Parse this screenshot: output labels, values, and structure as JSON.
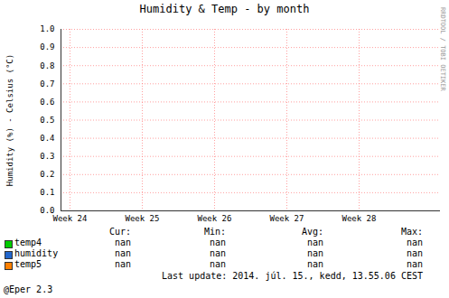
{
  "chart_data": {
    "type": "line",
    "title": "Humidity & Temp - by month",
    "y_label": "Humidity (%) - Celsius (°C)",
    "x": [
      24,
      25,
      26,
      27,
      28
    ],
    "xlim": [
      23.875,
      29.125
    ],
    "xticks": [
      {
        "value": 24,
        "label": "Week 24"
      },
      {
        "value": 25,
        "label": "Week 25"
      },
      {
        "value": 26,
        "label": "Week 26"
      },
      {
        "value": 27,
        "label": "Week 27"
      },
      {
        "value": 28,
        "label": "Week 28"
      }
    ],
    "ylim": [
      0,
      1
    ],
    "yticks": [
      {
        "value": 0,
        "label": "0.0"
      },
      0.1,
      0.2,
      0.3,
      0.4,
      0.5,
      0.6,
      0.7,
      0.8,
      0.9,
      {
        "value": 1,
        "label": "1.0"
      }
    ],
    "grid": true,
    "legend": "bottom",
    "stats_headers": [
      "Cur:",
      "Min:",
      "Avg:",
      "Max:"
    ],
    "series": [
      {
        "name": "temp4",
        "color": "#00cc00",
        "values": [
          null,
          null,
          null,
          null,
          null
        ],
        "stats": [
          "nan",
          "nan",
          "nan",
          "nan"
        ]
      },
      {
        "name": "humidity",
        "color": "#2266cc",
        "values": [
          null,
          null,
          null,
          null,
          null
        ],
        "stats": [
          "nan",
          "nan",
          "nan",
          "nan"
        ]
      },
      {
        "name": "temp5",
        "color": "#ff8000",
        "values": [
          null,
          null,
          null,
          null,
          null
        ],
        "stats": [
          "nan",
          "nan",
          "nan",
          "nan"
        ]
      }
    ],
    "footer": "Last update: 2014. júl. 15., kedd, 13.55.06 CEST",
    "caption": "@Eper 2.3",
    "watermark": "RRDTOOL / TOBI OETIKER"
  }
}
